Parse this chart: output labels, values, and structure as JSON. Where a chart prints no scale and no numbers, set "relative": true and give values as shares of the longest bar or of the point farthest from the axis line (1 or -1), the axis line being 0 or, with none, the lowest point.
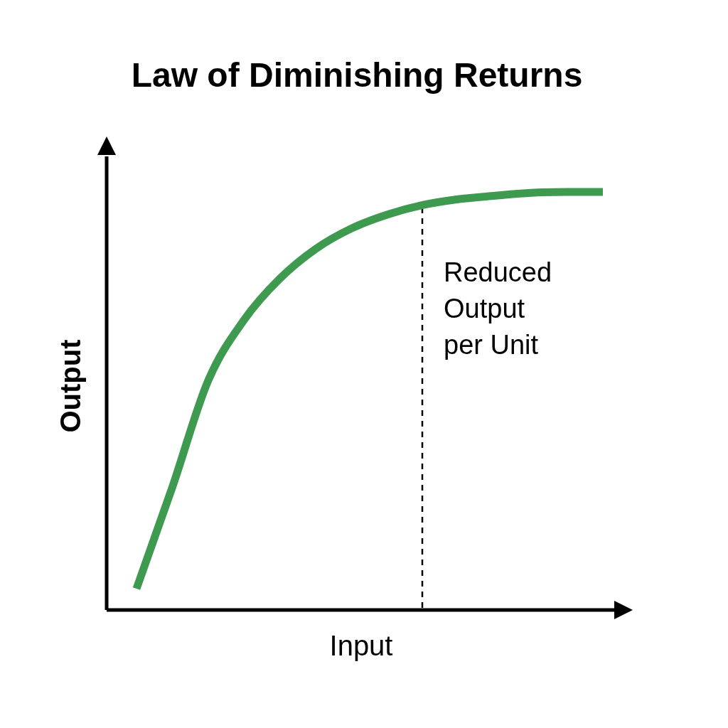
{
  "chart_data": {
    "type": "line",
    "title": "Law of Diminishing Returns",
    "xlabel": "Input",
    "ylabel": "Output",
    "relative": true,
    "annotations": [
      "Reduced Output per Unit"
    ],
    "categories": [
      null,
      null,
      null,
      null,
      null,
      null,
      null,
      null,
      null,
      null,
      null,
      null,
      null,
      null
    ],
    "values": [
      0.051,
      0.294,
      0.549,
      0.694,
      0.793,
      0.864,
      0.913,
      0.946,
      0.969,
      0.983,
      0.991,
      0.998,
      1.0,
      1.0
    ],
    "color": "#3d9a4f"
  }
}
